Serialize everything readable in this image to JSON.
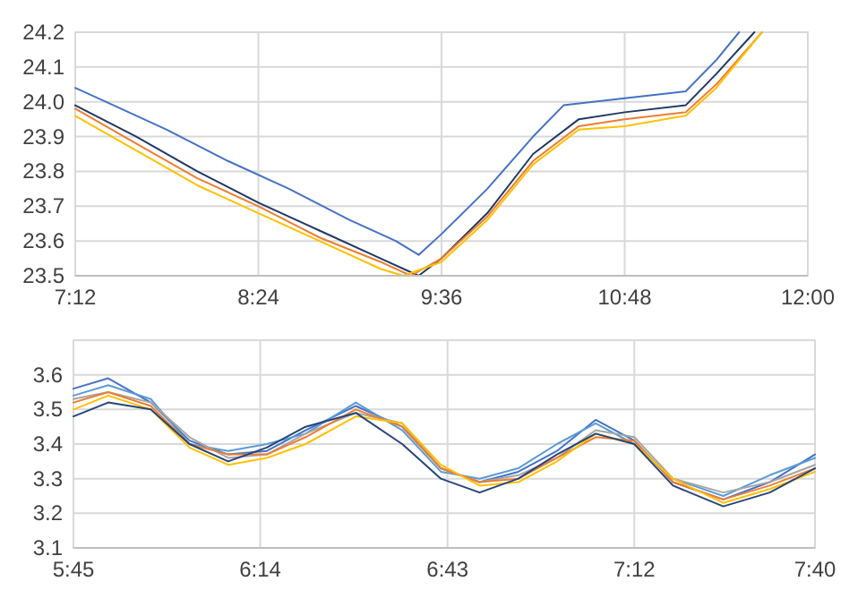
{
  "chart_data": [
    {
      "type": "line",
      "x": [
        7.2,
        7.4,
        7.8,
        8.2,
        8.6,
        9.0,
        9.3,
        9.45,
        9.6,
        9.9,
        10.2,
        10.4,
        10.8,
        11.2,
        11.4,
        11.55
      ],
      "xlim": [
        7.2,
        12.0
      ],
      "xticks": [
        {
          "value": 7.2,
          "label": "7:12"
        },
        {
          "value": 8.4,
          "label": "8:24"
        },
        {
          "value": 9.6,
          "label": "9:36"
        },
        {
          "value": 10.8,
          "label": "10:48"
        },
        {
          "value": 12.0,
          "label": "12:00"
        }
      ],
      "ylim": [
        23.5,
        24.2
      ],
      "yticks": [
        {
          "value": 23.5,
          "label": "23.5"
        },
        {
          "value": 23.6,
          "label": "23.6"
        },
        {
          "value": 23.7,
          "label": "23.7"
        },
        {
          "value": 23.8,
          "label": "23.8"
        },
        {
          "value": 23.9,
          "label": "23.9"
        },
        {
          "value": 24.0,
          "label": "24.0"
        },
        {
          "value": 24.1,
          "label": "24.1"
        },
        {
          "value": 24.2,
          "label": "24.2"
        }
      ],
      "grid": true,
      "series": [
        {
          "color": "#4472c4",
          "values": [
            24.04,
            24.0,
            23.92,
            23.83,
            23.75,
            23.66,
            23.6,
            23.56,
            23.62,
            23.75,
            23.9,
            23.99,
            24.01,
            24.03,
            24.12,
            24.2
          ]
        },
        {
          "color": "#203864",
          "x": [
            7.2,
            7.6,
            8.0,
            8.4,
            8.8,
            9.2,
            9.45,
            9.6,
            9.9,
            10.2,
            10.5,
            10.8,
            11.2,
            11.4,
            11.65
          ],
          "values": [
            23.99,
            23.9,
            23.8,
            23.71,
            23.63,
            23.55,
            23.5,
            23.55,
            23.68,
            23.85,
            23.95,
            23.97,
            23.99,
            24.08,
            24.2
          ]
        },
        {
          "color": "#ed7d31",
          "x": [
            7.2,
            7.6,
            8.0,
            8.4,
            8.8,
            9.2,
            9.4,
            9.6,
            9.9,
            10.2,
            10.5,
            10.8,
            11.2,
            11.4,
            11.7
          ],
          "values": [
            23.98,
            23.88,
            23.78,
            23.7,
            23.61,
            23.54,
            23.5,
            23.55,
            23.67,
            23.83,
            23.93,
            23.95,
            23.97,
            24.05,
            24.2
          ]
        },
        {
          "color": "#ffc000",
          "x": [
            7.2,
            7.6,
            8.0,
            8.4,
            8.8,
            9.2,
            9.35,
            9.6,
            9.9,
            10.2,
            10.5,
            10.8,
            11.2,
            11.4,
            11.7
          ],
          "values": [
            23.96,
            23.86,
            23.76,
            23.68,
            23.6,
            23.52,
            23.5,
            23.54,
            23.66,
            23.82,
            23.92,
            23.93,
            23.96,
            24.04,
            24.2
          ]
        }
      ]
    },
    {
      "type": "line",
      "x": [
        5.75,
        5.84,
        5.95,
        6.05,
        6.15,
        6.25,
        6.35,
        6.48,
        6.6,
        6.7,
        6.8,
        6.9,
        7.0,
        7.1,
        7.2,
        7.3,
        7.43,
        7.55,
        7.667
      ],
      "xlim": [
        5.75,
        7.667
      ],
      "xticks": [
        {
          "value": 5.75,
          "label": "5:45"
        },
        {
          "value": 6.233,
          "label": "6:14"
        },
        {
          "value": 6.717,
          "label": "6:43"
        },
        {
          "value": 7.2,
          "label": "7:12"
        },
        {
          "value": 7.667,
          "label": "7:40"
        }
      ],
      "ylim": [
        3.1,
        3.7
      ],
      "yticks": [
        {
          "value": 3.1,
          "label": "3.1"
        },
        {
          "value": 3.2,
          "label": "3.2"
        },
        {
          "value": 3.3,
          "label": "3.3"
        },
        {
          "value": 3.4,
          "label": "3.4"
        },
        {
          "value": 3.5,
          "label": "3.5"
        },
        {
          "value": 3.6,
          "label": "3.6"
        },
        {
          "value": 3.7,
          "label": null
        }
      ],
      "grid": true,
      "series": [
        {
          "color": "#4472c4",
          "values": [
            3.56,
            3.59,
            3.52,
            3.41,
            3.37,
            3.38,
            3.44,
            3.51,
            3.45,
            3.33,
            3.29,
            3.32,
            3.38,
            3.47,
            3.41,
            3.29,
            3.24,
            3.29,
            3.37
          ]
        },
        {
          "color": "#5b9bd5",
          "values": [
            3.54,
            3.57,
            3.53,
            3.4,
            3.38,
            3.4,
            3.43,
            3.52,
            3.44,
            3.32,
            3.3,
            3.33,
            3.4,
            3.46,
            3.4,
            3.3,
            3.25,
            3.31,
            3.36
          ]
        },
        {
          "color": "#a5a5a5",
          "values": [
            3.53,
            3.55,
            3.52,
            3.42,
            3.36,
            3.37,
            3.43,
            3.49,
            3.46,
            3.33,
            3.29,
            3.31,
            3.36,
            3.44,
            3.42,
            3.3,
            3.26,
            3.29,
            3.34
          ]
        },
        {
          "color": "#ed7d31",
          "values": [
            3.52,
            3.55,
            3.51,
            3.4,
            3.37,
            3.37,
            3.42,
            3.5,
            3.45,
            3.33,
            3.29,
            3.3,
            3.36,
            3.42,
            3.41,
            3.29,
            3.24,
            3.28,
            3.33
          ]
        },
        {
          "color": "#ffc000",
          "values": [
            3.5,
            3.54,
            3.5,
            3.39,
            3.34,
            3.36,
            3.4,
            3.48,
            3.46,
            3.34,
            3.28,
            3.29,
            3.35,
            3.43,
            3.4,
            3.3,
            3.23,
            3.27,
            3.32
          ]
        },
        {
          "color": "#264478",
          "values": [
            3.48,
            3.52,
            3.5,
            3.4,
            3.35,
            3.39,
            3.45,
            3.49,
            3.4,
            3.3,
            3.26,
            3.3,
            3.37,
            3.43,
            3.4,
            3.28,
            3.22,
            3.26,
            3.33
          ]
        }
      ]
    }
  ]
}
